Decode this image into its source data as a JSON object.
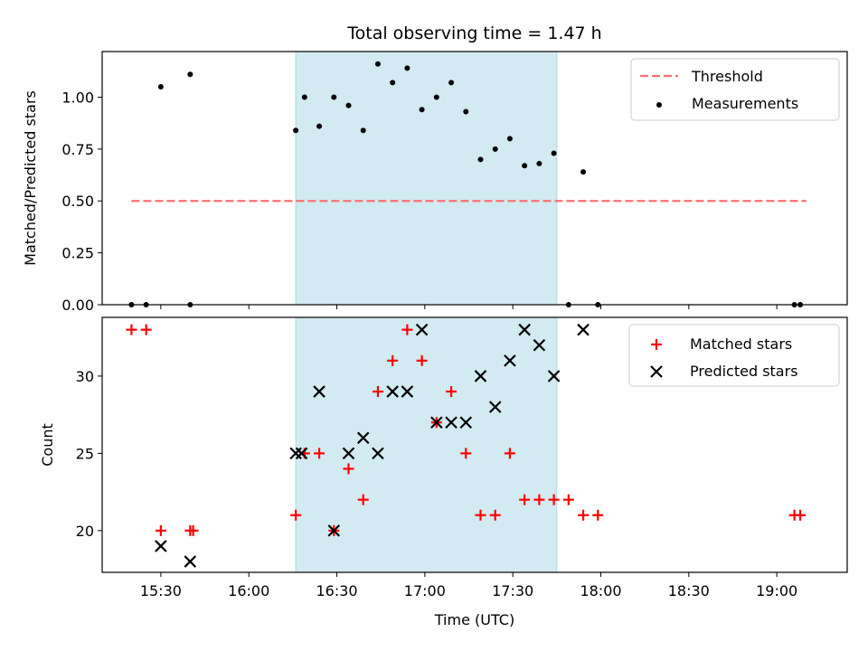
{
  "chart_data": {
    "title": "Total observing time = 1.47 h",
    "xlabel": "Time (UTC)",
    "x_ticks": [
      "15:30",
      "16:00",
      "16:30",
      "17:00",
      "17:30",
      "18:00",
      "18:30",
      "19:00"
    ],
    "xlim": [
      "15:10",
      "19:24"
    ],
    "shaded_interval": [
      "16:16",
      "17:45"
    ],
    "colors": {
      "shade": "#add8e6",
      "threshold": "#ff7070",
      "measurement": "#000000",
      "matched": "#ff0000",
      "predicted": "#000000"
    },
    "panels": [
      {
        "type": "scatter",
        "ylabel": "Matched/Predicted stars",
        "ylim": [
          0,
          1.22
        ],
        "y_ticks": [
          "0.00",
          "0.25",
          "0.50",
          "0.75",
          "1.00"
        ],
        "legend_position": "top-right",
        "threshold": {
          "name": "Threshold",
          "value": 0.5,
          "x": [
            "15:20",
            "19:10"
          ]
        },
        "series": [
          {
            "name": "Measurements",
            "marker": "dot",
            "points": [
              [
                "15:20",
                0.0
              ],
              [
                "15:25",
                0.0
              ],
              [
                "15:30",
                1.05
              ],
              [
                "15:40",
                1.11
              ],
              [
                "15:40",
                0.0
              ],
              [
                "16:16",
                0.84
              ],
              [
                "16:19",
                1.0
              ],
              [
                "16:24",
                0.86
              ],
              [
                "16:29",
                1.0
              ],
              [
                "16:34",
                0.96
              ],
              [
                "16:39",
                0.84
              ],
              [
                "16:44",
                1.16
              ],
              [
                "16:49",
                1.07
              ],
              [
                "16:54",
                1.14
              ],
              [
                "16:59",
                0.94
              ],
              [
                "17:04",
                1.0
              ],
              [
                "17:09",
                1.07
              ],
              [
                "17:14",
                0.93
              ],
              [
                "17:19",
                0.7
              ],
              [
                "17:24",
                0.75
              ],
              [
                "17:29",
                0.8
              ],
              [
                "17:34",
                0.67
              ],
              [
                "17:39",
                0.68
              ],
              [
                "17:44",
                0.73
              ],
              [
                "17:49",
                0.0
              ],
              [
                "17:54",
                0.64
              ],
              [
                "17:59",
                0.0
              ],
              [
                "19:06",
                0.0
              ],
              [
                "19:08",
                0.0
              ]
            ]
          }
        ]
      },
      {
        "type": "scatter",
        "ylabel": "Count",
        "ylim": [
          17.3,
          33.8
        ],
        "y_ticks": [
          "20",
          "25",
          "30"
        ],
        "legend_position": "top-right",
        "series": [
          {
            "name": "Matched stars",
            "marker": "plus",
            "points": [
              [
                "15:20",
                33
              ],
              [
                "15:25",
                33
              ],
              [
                "15:30",
                20
              ],
              [
                "15:40",
                20
              ],
              [
                "15:41",
                20
              ],
              [
                "16:16",
                21
              ],
              [
                "16:19",
                25
              ],
              [
                "16:24",
                25
              ],
              [
                "16:29",
                20
              ],
              [
                "16:34",
                24
              ],
              [
                "16:39",
                22
              ],
              [
                "16:44",
                29
              ],
              [
                "16:49",
                31
              ],
              [
                "16:54",
                33
              ],
              [
                "16:59",
                31
              ],
              [
                "17:04",
                27
              ],
              [
                "17:09",
                29
              ],
              [
                "17:14",
                25
              ],
              [
                "17:19",
                21
              ],
              [
                "17:24",
                21
              ],
              [
                "17:29",
                25
              ],
              [
                "17:34",
                22
              ],
              [
                "17:39",
                22
              ],
              [
                "17:44",
                22
              ],
              [
                "17:49",
                22
              ],
              [
                "17:54",
                21
              ],
              [
                "17:59",
                21
              ],
              [
                "19:06",
                21
              ],
              [
                "19:08",
                21
              ]
            ]
          },
          {
            "name": "Predicted stars",
            "marker": "x",
            "points": [
              [
                "15:30",
                19
              ],
              [
                "15:40",
                18
              ],
              [
                "16:16",
                25
              ],
              [
                "16:18",
                25
              ],
              [
                "16:24",
                29
              ],
              [
                "16:29",
                20
              ],
              [
                "16:34",
                25
              ],
              [
                "16:39",
                26
              ],
              [
                "16:44",
                25
              ],
              [
                "16:49",
                29
              ],
              [
                "16:54",
                29
              ],
              [
                "16:59",
                33
              ],
              [
                "17:04",
                27
              ],
              [
                "17:09",
                27
              ],
              [
                "17:14",
                27
              ],
              [
                "17:19",
                30
              ],
              [
                "17:24",
                28
              ],
              [
                "17:29",
                31
              ],
              [
                "17:34",
                33
              ],
              [
                "17:39",
                32
              ],
              [
                "17:44",
                30
              ],
              [
                "17:54",
                33
              ]
            ]
          }
        ]
      }
    ]
  }
}
